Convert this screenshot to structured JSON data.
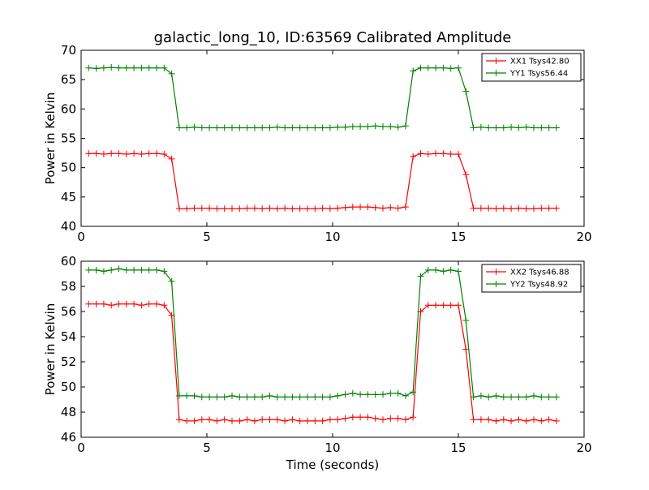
{
  "figure": {
    "title": "galactic_long_10, ID:63569 Calibrated Amplitude",
    "xlabel": "Time (seconds)"
  },
  "chart_data": [
    {
      "type": "line",
      "title": "galactic_long_10, ID:63569 Calibrated Amplitude",
      "xlabel": "",
      "ylabel": "Power in Kelvin",
      "xlim": [
        0,
        20
      ],
      "ylim": [
        40,
        70
      ],
      "xticks": [
        0,
        5,
        10,
        15,
        20
      ],
      "yticks": [
        40,
        45,
        50,
        55,
        60,
        65,
        70
      ],
      "grid": false,
      "legend_position": "top-right",
      "marker": "+",
      "x": [
        0.3,
        0.6,
        0.9,
        1.2,
        1.5,
        1.8,
        2.1,
        2.4,
        2.7,
        3.0,
        3.3,
        3.6,
        3.9,
        4.2,
        4.5,
        4.8,
        5.1,
        5.4,
        5.7,
        6.0,
        6.3,
        6.6,
        6.9,
        7.2,
        7.5,
        7.8,
        8.1,
        8.4,
        8.7,
        9.0,
        9.3,
        9.6,
        9.9,
        10.2,
        10.5,
        10.8,
        11.1,
        11.4,
        11.7,
        12.0,
        12.3,
        12.6,
        12.9,
        13.2,
        13.5,
        13.8,
        14.1,
        14.4,
        14.7,
        15.0,
        15.3,
        15.6,
        15.9,
        16.2,
        16.5,
        16.8,
        17.1,
        17.4,
        17.7,
        18.0,
        18.3,
        18.6,
        18.9
      ],
      "series": [
        {
          "name": "XX1 Tsys42.80",
          "color": "#ff0000",
          "values": [
            52.4,
            52.4,
            52.3,
            52.4,
            52.4,
            52.3,
            52.4,
            52.3,
            52.4,
            52.4,
            52.3,
            51.5,
            43.0,
            43.0,
            43.1,
            43.1,
            43.1,
            43.0,
            43.0,
            43.0,
            43.0,
            43.1,
            43.1,
            43.0,
            43.1,
            43.0,
            43.1,
            43.0,
            43.0,
            43.0,
            43.0,
            43.1,
            43.0,
            43.1,
            43.2,
            43.3,
            43.3,
            43.3,
            43.2,
            43.1,
            43.2,
            43.1,
            43.3,
            51.9,
            52.4,
            52.3,
            52.4,
            52.4,
            52.3,
            52.3,
            48.8,
            43.1,
            43.1,
            43.1,
            43.0,
            43.1,
            43.0,
            43.1,
            43.0,
            43.0,
            43.1,
            43.1,
            43.1
          ]
        },
        {
          "name": "YY1 Tsys56.44",
          "color": "#008000",
          "values": [
            67.0,
            66.9,
            67.0,
            67.1,
            67.0,
            67.0,
            67.0,
            67.0,
            67.0,
            67.0,
            67.0,
            66.0,
            56.8,
            56.8,
            56.9,
            56.8,
            56.8,
            56.8,
            56.8,
            56.8,
            56.8,
            56.8,
            56.8,
            56.8,
            56.8,
            56.9,
            56.8,
            56.8,
            56.8,
            56.8,
            56.8,
            56.8,
            56.8,
            56.9,
            56.9,
            57.0,
            57.0,
            57.0,
            57.1,
            57.0,
            57.0,
            56.9,
            57.1,
            66.5,
            67.0,
            67.0,
            67.0,
            67.0,
            66.9,
            67.0,
            63.0,
            56.8,
            56.9,
            56.8,
            56.8,
            56.8,
            56.9,
            56.8,
            56.9,
            56.8,
            56.8,
            56.8,
            56.8
          ]
        }
      ]
    },
    {
      "type": "line",
      "title": "",
      "xlabel": "Time (seconds)",
      "ylabel": "Power in Kelvin",
      "xlim": [
        0,
        20
      ],
      "ylim": [
        46,
        60
      ],
      "xticks": [
        0,
        5,
        10,
        15,
        20
      ],
      "yticks": [
        46,
        48,
        50,
        52,
        54,
        56,
        58,
        60
      ],
      "grid": false,
      "legend_position": "top-right",
      "marker": "+",
      "x": [
        0.3,
        0.6,
        0.9,
        1.2,
        1.5,
        1.8,
        2.1,
        2.4,
        2.7,
        3.0,
        3.3,
        3.6,
        3.9,
        4.2,
        4.5,
        4.8,
        5.1,
        5.4,
        5.7,
        6.0,
        6.3,
        6.6,
        6.9,
        7.2,
        7.5,
        7.8,
        8.1,
        8.4,
        8.7,
        9.0,
        9.3,
        9.6,
        9.9,
        10.2,
        10.5,
        10.8,
        11.1,
        11.4,
        11.7,
        12.0,
        12.3,
        12.6,
        12.9,
        13.2,
        13.5,
        13.8,
        14.1,
        14.4,
        14.7,
        15.0,
        15.3,
        15.6,
        15.9,
        16.2,
        16.5,
        16.8,
        17.1,
        17.4,
        17.7,
        18.0,
        18.3,
        18.6,
        18.9
      ],
      "series": [
        {
          "name": "XX2 Tsys46.88",
          "color": "#ff0000",
          "values": [
            56.6,
            56.6,
            56.6,
            56.5,
            56.6,
            56.6,
            56.6,
            56.5,
            56.6,
            56.6,
            56.5,
            55.7,
            47.4,
            47.3,
            47.3,
            47.4,
            47.4,
            47.3,
            47.4,
            47.3,
            47.3,
            47.4,
            47.3,
            47.4,
            47.4,
            47.4,
            47.3,
            47.4,
            47.3,
            47.3,
            47.3,
            47.3,
            47.4,
            47.4,
            47.5,
            47.6,
            47.6,
            47.6,
            47.5,
            47.4,
            47.5,
            47.5,
            47.4,
            47.6,
            56.0,
            56.5,
            56.5,
            56.5,
            56.5,
            56.5,
            53.0,
            47.4,
            47.4,
            47.4,
            47.3,
            47.4,
            47.3,
            47.4,
            47.3,
            47.4,
            47.3,
            47.4,
            47.3
          ]
        },
        {
          "name": "YY2 Tsys48.92",
          "color": "#008000",
          "values": [
            59.3,
            59.3,
            59.2,
            59.3,
            59.4,
            59.3,
            59.3,
            59.3,
            59.3,
            59.3,
            59.2,
            58.4,
            49.3,
            49.3,
            49.3,
            49.2,
            49.2,
            49.2,
            49.2,
            49.3,
            49.2,
            49.2,
            49.2,
            49.2,
            49.3,
            49.2,
            49.2,
            49.2,
            49.2,
            49.2,
            49.2,
            49.2,
            49.2,
            49.3,
            49.4,
            49.5,
            49.4,
            49.4,
            49.4,
            49.4,
            49.5,
            49.5,
            49.3,
            49.6,
            58.8,
            59.3,
            59.3,
            59.2,
            59.3,
            59.2,
            55.3,
            49.2,
            49.3,
            49.2,
            49.3,
            49.2,
            49.2,
            49.2,
            49.2,
            49.3,
            49.2,
            49.2,
            49.2
          ]
        }
      ]
    }
  ]
}
